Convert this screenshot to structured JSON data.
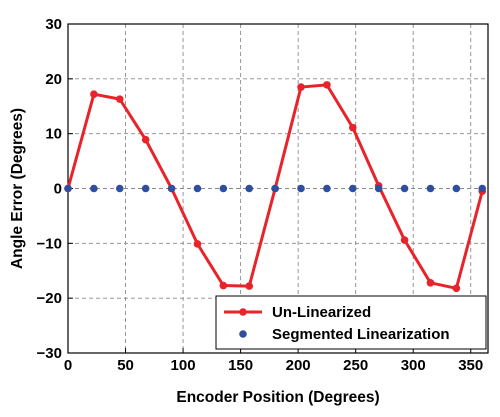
{
  "chart_data": {
    "type": "line",
    "title": "",
    "xlabel": "Encoder Position (Degrees)",
    "ylabel": "Angle Error (Degrees)",
    "xlim": [
      0,
      365
    ],
    "ylim": [
      -30,
      30
    ],
    "xticks": [
      0,
      50,
      100,
      150,
      200,
      250,
      300,
      350
    ],
    "yticks": [
      -30,
      -20,
      -10,
      0,
      10,
      20,
      30
    ],
    "x_tick_labels": [
      "0",
      "50",
      "100",
      "150",
      "200",
      "250",
      "300",
      "350"
    ],
    "y_tick_labels": [
      "−30",
      "−20",
      "−10",
      "0",
      "10",
      "20",
      "30"
    ],
    "grid": true,
    "legend_position": "bottom-right",
    "series": [
      {
        "name": "Un-Linearized",
        "color": "#e8242a",
        "style": "line-with-markers",
        "x": [
          0,
          22.5,
          45,
          67.5,
          90,
          112.5,
          135,
          157.5,
          180,
          202.5,
          225,
          247.5,
          270,
          292.5,
          315,
          337.5,
          360
        ],
        "y": [
          0,
          17.2,
          16.3,
          8.9,
          0,
          -10.1,
          -17.7,
          -17.8,
          0,
          18.5,
          18.9,
          11.1,
          0.5,
          -9.4,
          -17.2,
          -18.2,
          -0.5
        ]
      },
      {
        "name": "Segmented Linearization",
        "color": "#2f4ea0",
        "style": "markers",
        "x": [
          0,
          22.5,
          45,
          67.5,
          90,
          112.5,
          135,
          157.5,
          180,
          202.5,
          225,
          247.5,
          270,
          292.5,
          315,
          337.5,
          360
        ],
        "y": [
          0,
          0,
          0,
          0,
          0,
          0,
          0,
          0,
          0,
          0,
          0,
          0,
          0,
          0,
          0,
          0,
          0
        ]
      }
    ]
  }
}
